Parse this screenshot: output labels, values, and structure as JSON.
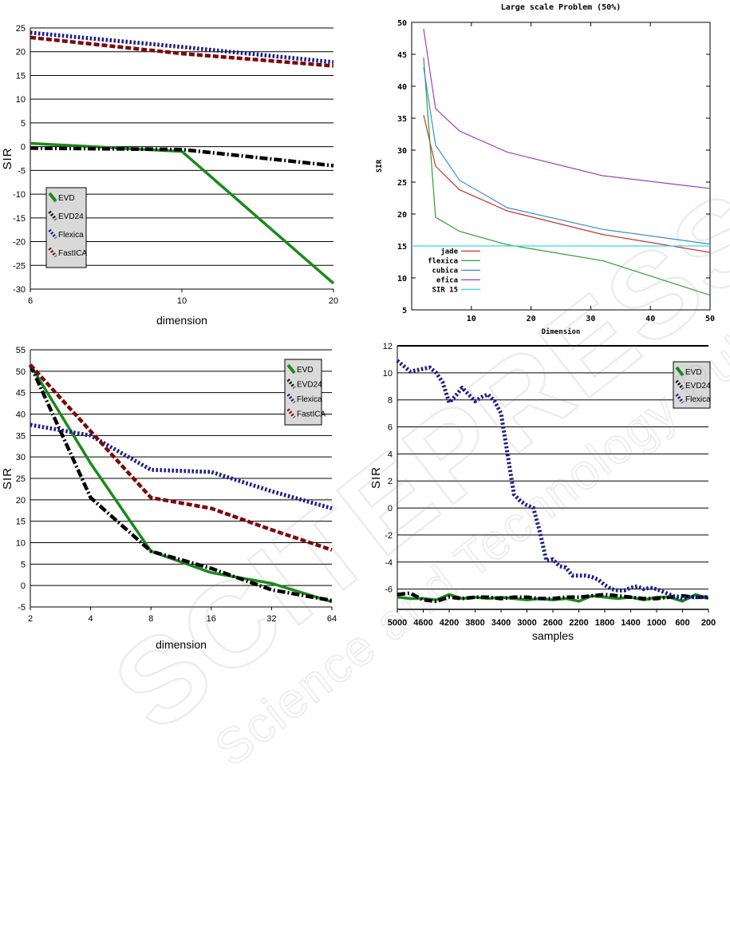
{
  "watermark": {
    "line1": "SCITEPRESS",
    "line2": "Science and Technology Publications"
  },
  "colors": {
    "evd": "#1a8a1a",
    "evd24": "#000000",
    "flexica": "#1a1a8c",
    "fastica": "#7a0a0a",
    "jade": "#cc3333",
    "flexica2": "#2e9e2e",
    "cubica": "#3a8fd0",
    "efica": "#a040c0",
    "sir15": "#33dddd"
  },
  "chart_data": [
    {
      "id": "top-left",
      "type": "line",
      "title": "",
      "xlabel": "dimension",
      "ylabel": "SIR",
      "categories": [
        "6",
        "10",
        "20"
      ],
      "ylim": [
        -30,
        25
      ],
      "yticks": [
        25,
        20,
        15,
        10,
        5,
        0,
        -5,
        -10,
        -15,
        -20,
        -25,
        -30
      ],
      "grid": true,
      "legend_position": "left-lower",
      "series": [
        {
          "name": "EVD",
          "key": "evd",
          "style": "solid",
          "values": [
            0.7,
            -1.0,
            -28.8
          ]
        },
        {
          "name": "EVD24",
          "key": "evd24",
          "style": "dashdot",
          "values": [
            -0.3,
            -0.6,
            -4.0
          ]
        },
        {
          "name": "Flexica",
          "key": "flexica",
          "style": "dotted",
          "values": [
            24.0,
            21.0,
            17.8
          ]
        },
        {
          "name": "FastICA",
          "key": "fastica",
          "style": "dashed",
          "values": [
            23.0,
            19.6,
            17.0
          ]
        }
      ]
    },
    {
      "id": "top-right",
      "type": "line",
      "title": "Large scale Problem (50%)",
      "xlabel": "Dimension",
      "ylabel": "SIR",
      "xlim": [
        0,
        50
      ],
      "ylim": [
        5,
        50
      ],
      "xticks": [
        10,
        20,
        30,
        40,
        50
      ],
      "yticks": [
        5,
        10,
        15,
        20,
        25,
        30,
        35,
        40,
        45,
        50
      ],
      "grid": false,
      "legend_position": "lower-left",
      "series": [
        {
          "name": "jade",
          "key": "jade",
          "x": [
            2,
            4,
            8,
            16,
            32,
            50
          ],
          "values": [
            35.5,
            27.5,
            23.8,
            20.5,
            16.8,
            14.0
          ]
        },
        {
          "name": "flexica",
          "key": "flexica2",
          "x": [
            2,
            4,
            8,
            16,
            32,
            50
          ],
          "values": [
            44.5,
            19.5,
            17.3,
            15.2,
            12.7,
            7.3
          ]
        },
        {
          "name": "cubica",
          "key": "cubica",
          "x": [
            2,
            4,
            8,
            16,
            32,
            50
          ],
          "values": [
            43.0,
            30.8,
            25.3,
            21.0,
            17.6,
            15.3
          ]
        },
        {
          "name": "efica",
          "key": "efica",
          "x": [
            2,
            4,
            8,
            16,
            32,
            50
          ],
          "values": [
            49.0,
            36.5,
            33.0,
            29.7,
            26.0,
            24.0
          ]
        },
        {
          "name": "SIR 15",
          "key": "sir15",
          "x": [
            0,
            50
          ],
          "values": [
            15,
            15
          ]
        }
      ]
    },
    {
      "id": "bottom-left",
      "type": "line",
      "title": "",
      "xlabel": "dimension",
      "ylabel": "SIR",
      "categories": [
        "2",
        "4",
        "8",
        "16",
        "32",
        "64"
      ],
      "ylim": [
        -5,
        55
      ],
      "yticks": [
        55,
        50,
        45,
        40,
        35,
        30,
        25,
        20,
        15,
        10,
        5,
        0,
        -5
      ],
      "grid": true,
      "legend_position": "top-right",
      "series": [
        {
          "name": "EVD",
          "key": "evd",
          "style": "solid",
          "values": [
            51.5,
            28.5,
            8.0,
            3.0,
            0.5,
            -3.8
          ]
        },
        {
          "name": "EVD24",
          "key": "evd24",
          "style": "dashdot",
          "values": [
            51.5,
            20.5,
            8.0,
            4.0,
            -1.0,
            -3.5
          ]
        },
        {
          "name": "Flexica",
          "key": "flexica",
          "style": "dotted",
          "values": [
            37.5,
            35.0,
            27.0,
            26.5,
            22.0,
            18.0
          ]
        },
        {
          "name": "FastICA",
          "key": "fastica",
          "style": "dashed",
          "values": [
            51.5,
            36.0,
            20.5,
            18.0,
            13.0,
            8.3
          ]
        }
      ]
    },
    {
      "id": "bottom-right",
      "type": "line",
      "title": "",
      "xlabel": "samples",
      "ylabel": "SIR",
      "categories": [
        "5000",
        "4600",
        "4200",
        "3800",
        "3400",
        "3000",
        "2600",
        "2200",
        "1800",
        "1400",
        "1000",
        "600",
        "200"
      ],
      "ylim": [
        -7.5,
        12
      ],
      "yticks": [
        12,
        10,
        8,
        6,
        4,
        2,
        0,
        -2,
        -4,
        -6
      ],
      "grid": true,
      "legend_position": "top-right",
      "series": [
        {
          "name": "EVD",
          "key": "evd",
          "style": "solid",
          "x": [
            5000,
            4800,
            4600,
            4400,
            4200,
            4000,
            3800,
            3600,
            3400,
            3200,
            3000,
            2800,
            2600,
            2400,
            2200,
            2000,
            1800,
            1600,
            1400,
            1200,
            1000,
            800,
            600,
            400,
            200
          ],
          "values": [
            -6.6,
            -6.7,
            -6.7,
            -6.8,
            -6.4,
            -6.7,
            -6.6,
            -6.7,
            -6.6,
            -6.7,
            -6.8,
            -6.7,
            -6.8,
            -6.7,
            -6.9,
            -6.5,
            -6.6,
            -6.7,
            -6.6,
            -6.8,
            -6.6,
            -6.6,
            -6.9,
            -6.4,
            -6.7
          ]
        },
        {
          "name": "EVD24",
          "key": "evd24",
          "style": "dashdot",
          "x": [
            5000,
            4800,
            4600,
            4400,
            4200,
            4000,
            3800,
            3600,
            3400,
            3200,
            3000,
            2800,
            2600,
            2400,
            2200,
            2000,
            1800,
            1600,
            1400,
            1200,
            1000,
            800,
            600,
            400,
            200
          ],
          "values": [
            -6.4,
            -6.3,
            -6.8,
            -6.9,
            -6.6,
            -6.7,
            -6.6,
            -6.6,
            -6.7,
            -6.6,
            -6.6,
            -6.7,
            -6.7,
            -6.6,
            -6.6,
            -6.5,
            -6.4,
            -6.5,
            -6.6,
            -6.7,
            -6.7,
            -6.6,
            -6.5,
            -6.6,
            -6.6
          ]
        },
        {
          "name": "Flexica",
          "key": "flexica",
          "style": "dotted",
          "x": [
            5000,
            4800,
            4600,
            4500,
            4400,
            4300,
            4200,
            4100,
            4000,
            3900,
            3800,
            3700,
            3600,
            3500,
            3400,
            3300,
            3200,
            3100,
            3000,
            2900,
            2800,
            2700,
            2600,
            2500,
            2400,
            2300,
            2200,
            2100,
            2000,
            1900,
            1800,
            1700,
            1600,
            1500,
            1400,
            1300,
            1200,
            1100,
            1000,
            900,
            800,
            700,
            600,
            500,
            400,
            300,
            200
          ],
          "values": [
            10.9,
            10.1,
            10.3,
            10.4,
            10.0,
            9.3,
            7.8,
            8.3,
            8.9,
            8.4,
            7.9,
            8.2,
            8.4,
            7.9,
            7.0,
            4.0,
            1.0,
            0.5,
            0.2,
            0.0,
            -1.8,
            -3.9,
            -3.8,
            -4.3,
            -4.4,
            -5.0,
            -5.0,
            -5.0,
            -5.1,
            -5.3,
            -5.7,
            -6.0,
            -6.1,
            -6.1,
            -5.9,
            -5.8,
            -6.0,
            -5.9,
            -6.0,
            -6.2,
            -6.4,
            -6.6,
            -6.7,
            -6.6,
            -6.6,
            -6.6,
            -6.6
          ]
        }
      ]
    }
  ]
}
